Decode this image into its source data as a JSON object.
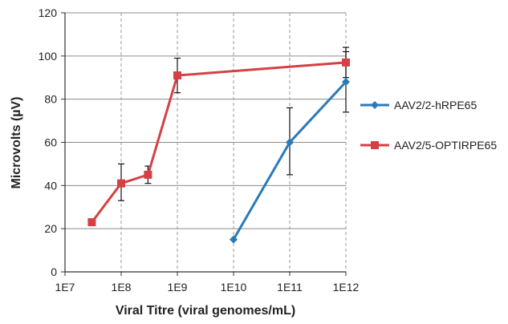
{
  "chart_data": {
    "type": "line",
    "title": "",
    "xlabel": "Viral Titre (viral genomes/mL)",
    "ylabel": "Microvolts (µV)",
    "x_scale": "log",
    "xlim": [
      10000000,
      1000000000000
    ],
    "ylim": [
      0,
      120
    ],
    "x_tick_values": [
      10000000,
      100000000,
      1000000000,
      10000000000,
      100000000000,
      1000000000000
    ],
    "x_tick_labels": [
      "1E7",
      "1E8",
      "1E9",
      "1E10",
      "1E11",
      "1E12"
    ],
    "y_ticks": [
      0,
      20,
      40,
      60,
      80,
      100,
      120
    ],
    "grid": {
      "x": "dashed",
      "y": "solid"
    },
    "legend_position": "right",
    "series": [
      {
        "name": "AAV2/2-hRPE65",
        "color": "#2a7ab9",
        "marker": "diamond",
        "x": [
          10000000000,
          100000000000,
          1000000000000
        ],
        "y": [
          15,
          60,
          88
        ],
        "err_low": [
          null,
          45,
          74
        ],
        "err_high": [
          null,
          76,
          104
        ]
      },
      {
        "name": "AAV2/5-OPTIRPE65",
        "color": "#d44044",
        "marker": "square",
        "x": [
          30000000,
          100000000,
          300000000,
          1000000000,
          1000000000000
        ],
        "y": [
          23,
          41,
          45,
          91,
          97
        ],
        "err_low": [
          null,
          33,
          41,
          83,
          90
        ],
        "err_high": [
          null,
          50,
          49,
          99,
          102
        ]
      }
    ]
  }
}
